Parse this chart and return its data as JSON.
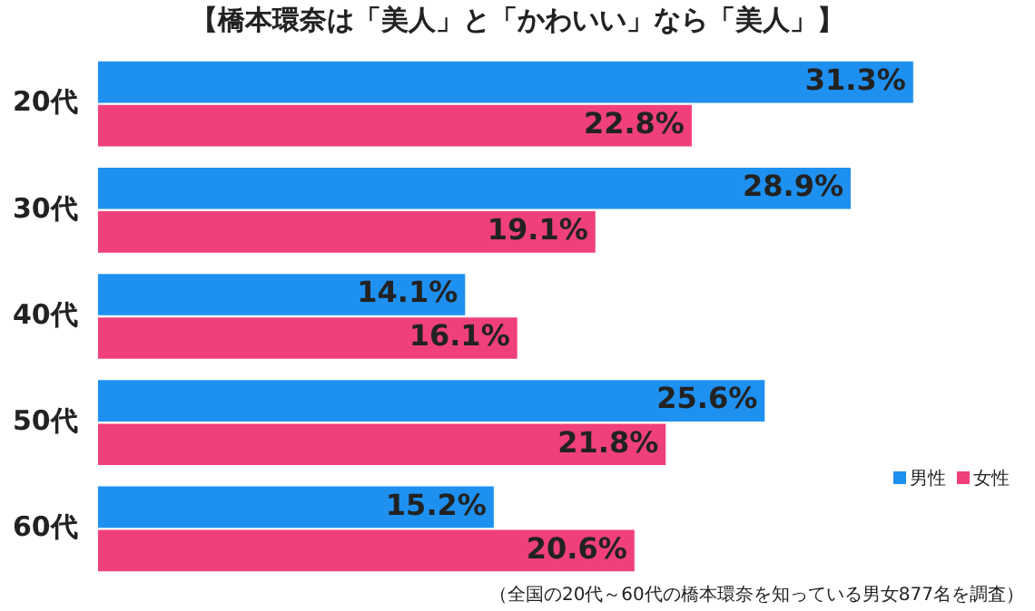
{
  "chart_data": {
    "type": "bar",
    "orientation": "horizontal",
    "title": "【橋本環奈は「美人」と「かわいい」なら「美人」】",
    "categories": [
      "20代",
      "30代",
      "40代",
      "50代",
      "60代"
    ],
    "series": [
      {
        "name": "男性",
        "color": "#1e90f0",
        "values": [
          31.3,
          28.9,
          14.1,
          25.6,
          15.2
        ],
        "value_labels": [
          "31.3%",
          "28.9%",
          "14.1%",
          "25.6%",
          "15.2%"
        ]
      },
      {
        "name": "女性",
        "color": "#f0407c",
        "values": [
          22.8,
          19.1,
          16.1,
          21.8,
          20.6
        ],
        "value_labels": [
          "22.8%",
          "19.1%",
          "16.1%",
          "21.8%",
          "20.6%"
        ]
      }
    ],
    "annotations": [
      "（全国の20代～60代の橋本環奈を知っている男女877名を調査）"
    ],
    "legend": "bottom right",
    "grid": false,
    "tick_labels": "y"
  }
}
